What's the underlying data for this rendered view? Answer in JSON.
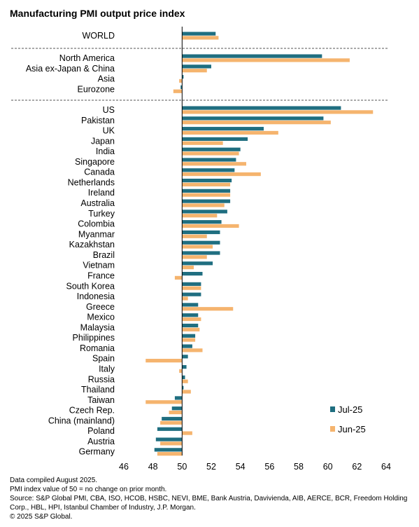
{
  "chart_data": {
    "type": "bar",
    "orientation": "horizontal",
    "title": "Manufacturing PMI output price index",
    "xlabel": "",
    "ylabel": "",
    "xlim": [
      46,
      64
    ],
    "xticks": [
      46,
      48,
      50,
      52,
      54,
      56,
      58,
      60,
      62,
      64
    ],
    "baseline": 50,
    "grid": false,
    "legend_position": "bottom-right",
    "groups": [
      {
        "categories": [
          "WORLD"
        ]
      },
      {
        "categories": [
          "North America",
          "Asia ex-Japan & China",
          "Asia",
          "Eurozone"
        ]
      },
      {
        "categories": [
          "US",
          "Pakistan",
          "UK",
          "Japan",
          "India",
          "Singapore",
          "Canada",
          "Netherlands",
          "Ireland",
          "Australia",
          "Turkey",
          "Colombia",
          "Myanmar",
          "Kazakhstan",
          "Brazil",
          "Vietnam",
          "France",
          "South Korea",
          "Indonesia",
          "Greece",
          "Mexico",
          "Malaysia",
          "Philippines",
          "Romania",
          "Spain",
          "Italy",
          "Russia",
          "Thailand",
          "Taiwan",
          "Czech Rep.",
          "China (mainland)",
          "Poland",
          "Austria",
          "Germany"
        ]
      }
    ],
    "series": [
      {
        "name": "Jul-25",
        "color": "#1f6e80",
        "values": [
          52.3,
          59.6,
          52.0,
          50.1,
          49.9,
          60.9,
          59.7,
          55.6,
          54.5,
          54.0,
          53.7,
          53.6,
          53.4,
          53.3,
          53.3,
          53.1,
          52.7,
          52.6,
          52.6,
          52.6,
          52.1,
          51.4,
          51.3,
          51.3,
          51.1,
          51.1,
          51.1,
          50.9,
          50.7,
          50.4,
          50.3,
          50.2,
          50.1,
          49.5,
          49.3,
          48.6,
          48.3,
          48.2,
          48.1
        ]
      },
      {
        "name": "Jun-25",
        "color": "#f5b46e",
        "values": [
          52.5,
          61.5,
          51.7,
          49.8,
          49.4,
          63.1,
          60.2,
          56.6,
          52.8,
          53.9,
          54.4,
          55.4,
          53.3,
          53.3,
          52.9,
          52.4,
          53.9,
          51.7,
          52.1,
          51.7,
          50.8,
          49.5,
          51.3,
          50.4,
          53.5,
          51.3,
          51.2,
          50.9,
          51.4,
          47.5,
          49.8,
          50.4,
          50.6,
          47.5,
          49.1,
          48.5,
          50.7,
          48.5,
          48.3
        ]
      }
    ]
  },
  "notes": {
    "compiled": "Data compiled August 2025.",
    "definition": "PMI index value of 50 = no change on prior month.",
    "source": "Source: S&P Global PMI, CBA, ISO, HCOB, HSBC, NEVI, BME, Bank Austria, Davivienda, AIB, AERCE, BCR, Freedom Holding Corp., HBL, HPI, Istanbul Chamber of Industry, J.P. Morgan.",
    "copyright": "© 2025 S&P Global."
  }
}
